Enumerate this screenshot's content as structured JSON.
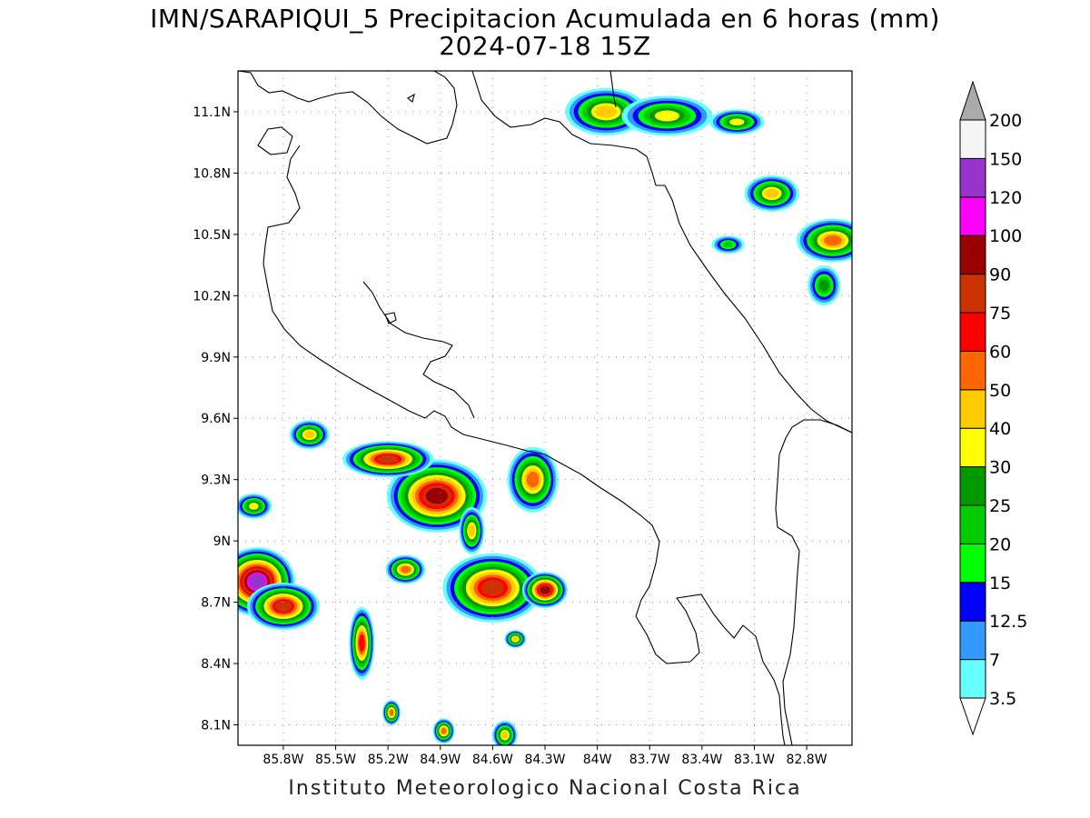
{
  "title": {
    "line1": "IMN/SARAPIQUI_5 Precipitacion Acumulada en 6 horas (mm)",
    "line2": "2024-07-18 15Z"
  },
  "footer": "Instituto Meteorologico Nacional Costa Rica",
  "map": {
    "lon_range": [
      -86.06,
      -82.54
    ],
    "lat_range": [
      8.0,
      11.3
    ],
    "lat_ticks": [
      {
        "value": 8.1,
        "label": "8.1N"
      },
      {
        "value": 8.4,
        "label": "8.4N"
      },
      {
        "value": 8.7,
        "label": "8.7N"
      },
      {
        "value": 9.0,
        "label": "9N"
      },
      {
        "value": 9.3,
        "label": "9.3N"
      },
      {
        "value": 9.6,
        "label": "9.6N"
      },
      {
        "value": 9.9,
        "label": "9.9N"
      },
      {
        "value": 10.2,
        "label": "10.2N"
      },
      {
        "value": 10.5,
        "label": "10.5N"
      },
      {
        "value": 10.8,
        "label": "10.8N"
      },
      {
        "value": 11.1,
        "label": "11.1N"
      }
    ],
    "lon_ticks": [
      {
        "value": -85.8,
        "label": "85.8W"
      },
      {
        "value": -85.5,
        "label": "85.5W"
      },
      {
        "value": -85.2,
        "label": "85.2W"
      },
      {
        "value": -84.9,
        "label": "84.9W"
      },
      {
        "value": -84.6,
        "label": "84.6W"
      },
      {
        "value": -84.3,
        "label": "84.3W"
      },
      {
        "value": -84.0,
        "label": "84W"
      },
      {
        "value": -83.7,
        "label": "83.7W"
      },
      {
        "value": -83.4,
        "label": "83.4W"
      },
      {
        "value": -83.1,
        "label": "83.1W"
      },
      {
        "value": -82.8,
        "label": "82.8W"
      }
    ],
    "gridlines": true
  },
  "legend": {
    "levels": [
      "3.5",
      "7",
      "12.5",
      "15",
      "20",
      "25",
      "30",
      "40",
      "50",
      "60",
      "75",
      "90",
      "100",
      "120",
      "150",
      "200"
    ],
    "colors": [
      "#66ffff",
      "#3399ff",
      "#0000ff",
      "#00ff00",
      "#00cc00",
      "#009900",
      "#ffff00",
      "#ffcc00",
      "#ff6600",
      "#ff0000",
      "#cc3300",
      "#990000",
      "#ff00ff",
      "#9933cc",
      "#f5f5f5",
      "#aaaaaa"
    ]
  },
  "precip_cells": [
    {
      "lon": -85.95,
      "lat": 8.8,
      "rx": 42,
      "ry": 38,
      "max": 120
    },
    {
      "lon": -85.8,
      "lat": 8.68,
      "rx": 40,
      "ry": 26,
      "max": 75
    },
    {
      "lon": -85.97,
      "lat": 9.17,
      "rx": 20,
      "ry": 14,
      "max": 30
    },
    {
      "lon": -85.35,
      "lat": 8.5,
      "rx": 14,
      "ry": 40,
      "max": 60
    },
    {
      "lon": -85.1,
      "lat": 8.86,
      "rx": 22,
      "ry": 16,
      "max": 50
    },
    {
      "lon": -84.92,
      "lat": 9.22,
      "rx": 55,
      "ry": 40,
      "max": 90
    },
    {
      "lon": -85.2,
      "lat": 9.4,
      "rx": 50,
      "ry": 20,
      "max": 75
    },
    {
      "lon": -85.65,
      "lat": 9.52,
      "rx": 22,
      "ry": 16,
      "max": 40
    },
    {
      "lon": -84.6,
      "lat": 8.77,
      "rx": 55,
      "ry": 38,
      "max": 75
    },
    {
      "lon": -84.3,
      "lat": 8.76,
      "rx": 25,
      "ry": 20,
      "max": 90
    },
    {
      "lon": -84.37,
      "lat": 9.3,
      "rx": 28,
      "ry": 36,
      "max": 50
    },
    {
      "lon": -84.72,
      "lat": 9.05,
      "rx": 14,
      "ry": 26,
      "max": 40
    },
    {
      "lon": -84.47,
      "lat": 8.52,
      "rx": 12,
      "ry": 10,
      "max": 40
    },
    {
      "lon": -85.18,
      "lat": 8.16,
      "rx": 10,
      "ry": 14,
      "max": 50
    },
    {
      "lon": -84.88,
      "lat": 8.07,
      "rx": 12,
      "ry": 14,
      "max": 50
    },
    {
      "lon": -84.53,
      "lat": 8.05,
      "rx": 14,
      "ry": 16,
      "max": 40
    },
    {
      "lon": -83.95,
      "lat": 11.1,
      "rx": 45,
      "ry": 26,
      "max": 40
    },
    {
      "lon": -83.6,
      "lat": 11.08,
      "rx": 50,
      "ry": 22,
      "max": 30
    },
    {
      "lon": -83.0,
      "lat": 10.7,
      "rx": 30,
      "ry": 20,
      "max": 40
    },
    {
      "lon": -82.65,
      "lat": 10.47,
      "rx": 40,
      "ry": 24,
      "max": 50
    },
    {
      "lon": -82.7,
      "lat": 10.25,
      "rx": 18,
      "ry": 22,
      "max": 25
    },
    {
      "lon": -83.2,
      "lat": 11.05,
      "rx": 30,
      "ry": 14,
      "max": 30
    },
    {
      "lon": -83.25,
      "lat": 10.45,
      "rx": 18,
      "ry": 10,
      "max": 20
    }
  ]
}
